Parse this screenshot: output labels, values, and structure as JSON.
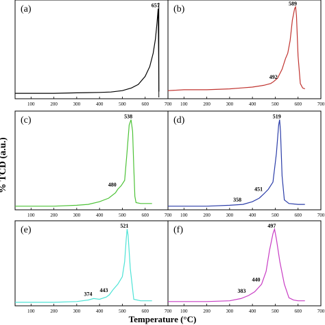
{
  "figure": {
    "ylabel": "% TCD (a.u.)",
    "xlabel": "Temperature (°C)"
  },
  "chart_data": [
    {
      "type": "line",
      "panel": "(a)",
      "color": "#000000",
      "xlim": [
        30,
        700
      ],
      "xticks": [
        100,
        200,
        300,
        400,
        500,
        600,
        700
      ],
      "x": [
        30,
        100,
        200,
        300,
        400,
        450,
        500,
        540,
        570,
        600,
        620,
        635,
        645,
        652,
        657,
        659,
        660
      ],
      "y": [
        0.03,
        0.03,
        0.03,
        0.035,
        0.04,
        0.045,
        0.06,
        0.09,
        0.13,
        0.22,
        0.33,
        0.48,
        0.64,
        0.82,
        0.98,
        0.45,
        0.05
      ],
      "peaks": [
        {
          "x": 657,
          "label": "657"
        }
      ],
      "vline": 660
    },
    {
      "type": "line",
      "panel": "(b)",
      "color": "#c0322e",
      "xlim": [
        30,
        700
      ],
      "xticks": [
        100,
        200,
        300,
        400,
        500,
        600,
        700
      ],
      "x": [
        30,
        100,
        200,
        300,
        350,
        400,
        450,
        480,
        492,
        510,
        530,
        545,
        555,
        565,
        575,
        585,
        589,
        593,
        600,
        610,
        620,
        630
      ],
      "y": [
        0.06,
        0.07,
        0.07,
        0.08,
        0.09,
        0.1,
        0.12,
        0.14,
        0.16,
        0.2,
        0.3,
        0.42,
        0.48,
        0.62,
        0.85,
        0.98,
        1.0,
        0.9,
        0.45,
        0.14,
        0.09,
        0.08
      ],
      "peaks": [
        {
          "x": 589,
          "label": "589"
        },
        {
          "x": 492,
          "label": "492"
        }
      ]
    },
    {
      "type": "line",
      "panel": "(c)",
      "color": "#4cc236",
      "xlim": [
        30,
        700
      ],
      "xticks": [
        100,
        200,
        300,
        400,
        500,
        600,
        700
      ],
      "x": [
        30,
        100,
        200,
        300,
        350,
        400,
        440,
        470,
        480,
        495,
        510,
        520,
        530,
        538,
        545,
        550,
        555,
        560,
        580,
        620,
        630
      ],
      "y": [
        0.01,
        0.01,
        0.01,
        0.02,
        0.03,
        0.06,
        0.1,
        0.16,
        0.2,
        0.24,
        0.3,
        0.6,
        0.92,
        0.98,
        0.85,
        0.45,
        0.12,
        0.05,
        0.04,
        0.04,
        0.04
      ],
      "peaks": [
        {
          "x": 538,
          "label": "538"
        },
        {
          "x": 480,
          "label": "480"
        }
      ]
    },
    {
      "type": "line",
      "panel": "(d)",
      "color": "#2a3ca8",
      "xlim": [
        30,
        700
      ],
      "xticks": [
        100,
        200,
        300,
        400,
        500,
        600,
        700
      ],
      "x": [
        30,
        100,
        200,
        300,
        358,
        400,
        430,
        451,
        470,
        490,
        505,
        515,
        519,
        523,
        530,
        540,
        560,
        600,
        630
      ],
      "y": [
        0.01,
        0.01,
        0.01,
        0.02,
        0.03,
        0.06,
        0.1,
        0.15,
        0.2,
        0.28,
        0.6,
        0.92,
        0.98,
        0.85,
        0.35,
        0.08,
        0.04,
        0.03,
        0.03
      ],
      "peaks": [
        {
          "x": 519,
          "label": "519"
        },
        {
          "x": 451,
          "label": "451"
        },
        {
          "x": 358,
          "label": "358"
        }
      ]
    },
    {
      "type": "line",
      "panel": "(e)",
      "color": "#4de3d6",
      "xlim": [
        30,
        700
      ],
      "xticks": [
        100,
        200,
        300,
        400,
        500,
        600,
        700
      ],
      "x": [
        30,
        100,
        200,
        300,
        350,
        374,
        400,
        430,
        443,
        460,
        480,
        500,
        510,
        517,
        521,
        525,
        535,
        550,
        580,
        620,
        630
      ],
      "y": [
        0.01,
        0.01,
        0.01,
        0.02,
        0.04,
        0.06,
        0.05,
        0.08,
        0.11,
        0.18,
        0.25,
        0.35,
        0.55,
        0.85,
        0.98,
        0.9,
        0.45,
        0.05,
        0.03,
        0.03,
        0.03
      ],
      "peaks": [
        {
          "x": 521,
          "label": "521"
        },
        {
          "x": 443,
          "label": "443"
        },
        {
          "x": 374,
          "label": "374"
        }
      ]
    },
    {
      "type": "line",
      "panel": "(f)",
      "color": "#c83cc4",
      "xlim": [
        30,
        700
      ],
      "xticks": [
        100,
        200,
        300,
        400,
        500,
        600,
        700
      ],
      "x": [
        30,
        100,
        200,
        300,
        350,
        383,
        410,
        440,
        460,
        475,
        490,
        497,
        505,
        520,
        540,
        560,
        580,
        600,
        630
      ],
      "y": [
        0.02,
        0.02,
        0.02,
        0.03,
        0.06,
        0.1,
        0.15,
        0.25,
        0.42,
        0.7,
        0.92,
        0.98,
        0.85,
        0.55,
        0.25,
        0.07,
        0.04,
        0.03,
        0.03
      ],
      "peaks": [
        {
          "x": 497,
          "label": "497"
        },
        {
          "x": 440,
          "label": "440"
        },
        {
          "x": 383,
          "label": "383"
        }
      ]
    }
  ]
}
